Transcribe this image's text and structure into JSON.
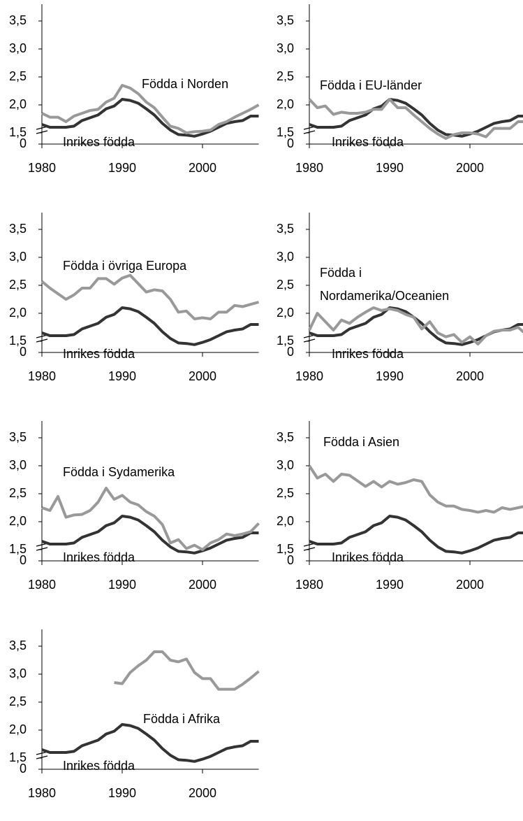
{
  "chart_data": [
    {
      "type": "line",
      "xlim": [
        1980,
        2007
      ],
      "xticks": [
        1980,
        1990,
        2000
      ],
      "ylim": [
        1.3,
        3.8
      ],
      "ybreak": true,
      "yticks": [
        0,
        {
          "value": 1.5,
          "label": "1,5"
        },
        {
          "value": 2.0,
          "label": "2,0"
        },
        {
          "value": 2.5,
          "label": "2,5"
        },
        {
          "value": 3.0,
          "label": "3,0"
        },
        {
          "value": 3.5,
          "label": "3,5"
        }
      ],
      "x": [
        1980,
        1981,
        1982,
        1983,
        1984,
        1985,
        1986,
        1987,
        1988,
        1989,
        1990,
        1991,
        1992,
        1993,
        1994,
        1995,
        1996,
        1997,
        1998,
        1999,
        2000,
        2001,
        2002,
        2003,
        2004,
        2005,
        2006,
        2007
      ],
      "series": [
        {
          "name": "Inrikes födda",
          "color": "#333333",
          "values": [
            1.65,
            1.6,
            1.6,
            1.6,
            1.62,
            1.72,
            1.77,
            1.82,
            1.93,
            1.98,
            2.1,
            2.08,
            2.03,
            1.93,
            1.82,
            1.67,
            1.55,
            1.47,
            1.46,
            1.44,
            1.48,
            1.53,
            1.6,
            1.67,
            1.7,
            1.72,
            1.8,
            1.8
          ]
        },
        {
          "name": "Födda i Norden",
          "color": "#999999",
          "values": [
            1.85,
            1.78,
            1.78,
            1.7,
            1.8,
            1.85,
            1.9,
            1.92,
            2.05,
            2.12,
            2.35,
            2.3,
            2.2,
            2.05,
            1.95,
            1.78,
            1.62,
            1.58,
            1.5,
            1.52,
            1.53,
            1.55,
            1.65,
            1.7,
            1.78,
            1.85,
            1.92,
            2.0
          ]
        }
      ]
    },
    {
      "type": "line",
      "xlim": [
        1980,
        2007
      ],
      "xticks": [
        1980,
        1990,
        2000
      ],
      "ylim": [
        1.3,
        3.8
      ],
      "ybreak": true,
      "yticks": [
        0,
        {
          "value": 1.5,
          "label": "1,5"
        },
        {
          "value": 2.0,
          "label": "2,0"
        },
        {
          "value": 2.5,
          "label": "2,5"
        },
        {
          "value": 3.0,
          "label": "3,0"
        },
        {
          "value": 3.5,
          "label": "3,5"
        }
      ],
      "x": [
        1980,
        1981,
        1982,
        1983,
        1984,
        1985,
        1986,
        1987,
        1988,
        1989,
        1990,
        1991,
        1992,
        1993,
        1994,
        1995,
        1996,
        1997,
        1998,
        1999,
        2000,
        2001,
        2002,
        2003,
        2004,
        2005,
        2006,
        2007
      ],
      "series": [
        {
          "name": "Inrikes födda",
          "color": "#333333",
          "values": [
            1.65,
            1.6,
            1.6,
            1.6,
            1.62,
            1.72,
            1.77,
            1.82,
            1.93,
            1.98,
            2.1,
            2.08,
            2.03,
            1.93,
            1.82,
            1.67,
            1.55,
            1.47,
            1.46,
            1.44,
            1.48,
            1.53,
            1.6,
            1.67,
            1.7,
            1.72,
            1.8,
            1.8
          ]
        },
        {
          "name": "Födda i EU-länder",
          "color": "#999999",
          "values": [
            2.1,
            1.95,
            1.98,
            1.83,
            1.87,
            1.85,
            1.85,
            1.87,
            1.92,
            1.92,
            2.1,
            1.95,
            1.95,
            1.82,
            1.7,
            1.58,
            1.48,
            1.4,
            1.47,
            1.5,
            1.5,
            1.48,
            1.43,
            1.58,
            1.58,
            1.58,
            1.7,
            1.7
          ]
        }
      ]
    },
    {
      "type": "line",
      "xlim": [
        1980,
        2007
      ],
      "xticks": [
        1980,
        1990,
        2000
      ],
      "ylim": [
        1.3,
        3.8
      ],
      "ybreak": true,
      "yticks": [
        0,
        {
          "value": 1.5,
          "label": "1,5"
        },
        {
          "value": 2.0,
          "label": "2,0"
        },
        {
          "value": 2.5,
          "label": "2,5"
        },
        {
          "value": 3.0,
          "label": "3,0"
        },
        {
          "value": 3.5,
          "label": "3,5"
        }
      ],
      "x": [
        1980,
        1981,
        1982,
        1983,
        1984,
        1985,
        1986,
        1987,
        1988,
        1989,
        1990,
        1991,
        1992,
        1993,
        1994,
        1995,
        1996,
        1997,
        1998,
        1999,
        2000,
        2001,
        2002,
        2003,
        2004,
        2005,
        2006,
        2007
      ],
      "series": [
        {
          "name": "Inrikes födda",
          "color": "#333333",
          "values": [
            1.65,
            1.6,
            1.6,
            1.6,
            1.62,
            1.72,
            1.77,
            1.82,
            1.93,
            1.98,
            2.1,
            2.08,
            2.03,
            1.93,
            1.82,
            1.67,
            1.55,
            1.47,
            1.46,
            1.44,
            1.48,
            1.53,
            1.6,
            1.67,
            1.7,
            1.72,
            1.8,
            1.8
          ]
        },
        {
          "name": "Födda i övriga Europa",
          "color": "#999999",
          "values": [
            2.57,
            2.45,
            2.35,
            2.25,
            2.33,
            2.45,
            2.45,
            2.62,
            2.62,
            2.52,
            2.63,
            2.68,
            2.53,
            2.38,
            2.42,
            2.4,
            2.25,
            2.02,
            2.04,
            1.9,
            1.92,
            1.9,
            2.02,
            2.02,
            2.14,
            2.12,
            2.16,
            2.2
          ]
        }
      ]
    },
    {
      "type": "line",
      "xlim": [
        1980,
        2007
      ],
      "xticks": [
        1980,
        1990,
        2000
      ],
      "ylim": [
        1.3,
        3.8
      ],
      "ybreak": true,
      "yticks": [
        0,
        {
          "value": 1.5,
          "label": "1,5"
        },
        {
          "value": 2.0,
          "label": "2,0"
        },
        {
          "value": 2.5,
          "label": "2,5"
        },
        {
          "value": 3.0,
          "label": "3,0"
        },
        {
          "value": 3.5,
          "label": "3,5"
        }
      ],
      "x": [
        1980,
        1981,
        1982,
        1983,
        1984,
        1985,
        1986,
        1987,
        1988,
        1989,
        1990,
        1991,
        1992,
        1993,
        1994,
        1995,
        1996,
        1997,
        1998,
        1999,
        2000,
        2001,
        2002,
        2003,
        2004,
        2005,
        2006,
        2007
      ],
      "series": [
        {
          "name": "Inrikes födda",
          "color": "#333333",
          "values": [
            1.65,
            1.6,
            1.6,
            1.6,
            1.62,
            1.72,
            1.77,
            1.82,
            1.93,
            1.98,
            2.1,
            2.08,
            2.03,
            1.93,
            1.82,
            1.67,
            1.55,
            1.47,
            1.46,
            1.44,
            1.48,
            1.53,
            1.6,
            1.67,
            1.7,
            1.72,
            1.8,
            1.8
          ]
        },
        {
          "name": "Födda i Nordamerika/Oceanien",
          "color": "#999999",
          "values": [
            1.7,
            2.0,
            1.85,
            1.7,
            1.88,
            1.82,
            1.93,
            2.02,
            2.1,
            2.05,
            2.08,
            2.05,
            1.98,
            1.93,
            1.72,
            1.85,
            1.65,
            1.58,
            1.62,
            1.48,
            1.58,
            1.45,
            1.6,
            1.68,
            1.7,
            1.7,
            1.75,
            1.62
          ]
        }
      ]
    },
    {
      "type": "line",
      "xlim": [
        1980,
        2007
      ],
      "xticks": [
        1980,
        1990,
        2000
      ],
      "ylim": [
        1.3,
        3.8
      ],
      "ybreak": true,
      "yticks": [
        0,
        {
          "value": 1.5,
          "label": "1,5"
        },
        {
          "value": 2.0,
          "label": "2,0"
        },
        {
          "value": 2.5,
          "label": "2,5"
        },
        {
          "value": 3.0,
          "label": "3,0"
        },
        {
          "value": 3.5,
          "label": "3,5"
        }
      ],
      "x": [
        1980,
        1981,
        1982,
        1983,
        1984,
        1985,
        1986,
        1987,
        1988,
        1989,
        1990,
        1991,
        1992,
        1993,
        1994,
        1995,
        1996,
        1997,
        1998,
        1999,
        2000,
        2001,
        2002,
        2003,
        2004,
        2005,
        2006,
        2007
      ],
      "series": [
        {
          "name": "Inrikes födda",
          "color": "#333333",
          "values": [
            1.65,
            1.6,
            1.6,
            1.6,
            1.62,
            1.72,
            1.77,
            1.82,
            1.93,
            1.98,
            2.1,
            2.08,
            2.03,
            1.93,
            1.82,
            1.67,
            1.55,
            1.47,
            1.46,
            1.44,
            1.48,
            1.53,
            1.6,
            1.67,
            1.7,
            1.72,
            1.8,
            1.8
          ]
        },
        {
          "name": "Födda i Sydamerika",
          "color": "#999999",
          "values": [
            2.25,
            2.2,
            2.45,
            2.08,
            2.12,
            2.13,
            2.2,
            2.35,
            2.6,
            2.4,
            2.47,
            2.35,
            2.3,
            2.18,
            2.1,
            1.95,
            1.62,
            1.68,
            1.52,
            1.58,
            1.5,
            1.62,
            1.68,
            1.78,
            1.75,
            1.78,
            1.82,
            1.97
          ]
        }
      ]
    },
    {
      "type": "line",
      "xlim": [
        1980,
        2007
      ],
      "xticks": [
        1980,
        1990,
        2000
      ],
      "ylim": [
        1.3,
        3.8
      ],
      "ybreak": true,
      "yticks": [
        0,
        {
          "value": 1.5,
          "label": "1,5"
        },
        {
          "value": 2.0,
          "label": "2,0"
        },
        {
          "value": 2.5,
          "label": "2,5"
        },
        {
          "value": 3.0,
          "label": "3,0"
        },
        {
          "value": 3.5,
          "label": "3,5"
        }
      ],
      "x": [
        1980,
        1981,
        1982,
        1983,
        1984,
        1985,
        1986,
        1987,
        1988,
        1989,
        1990,
        1991,
        1992,
        1993,
        1994,
        1995,
        1996,
        1997,
        1998,
        1999,
        2000,
        2001,
        2002,
        2003,
        2004,
        2005,
        2006,
        2007
      ],
      "series": [
        {
          "name": "Inrikes födda",
          "color": "#333333",
          "values": [
            1.65,
            1.6,
            1.6,
            1.6,
            1.62,
            1.72,
            1.77,
            1.82,
            1.93,
            1.98,
            2.1,
            2.08,
            2.03,
            1.93,
            1.82,
            1.67,
            1.55,
            1.47,
            1.46,
            1.44,
            1.48,
            1.53,
            1.6,
            1.67,
            1.7,
            1.72,
            1.8,
            1.8
          ]
        },
        {
          "name": "Födda i Asien",
          "color": "#999999",
          "values": [
            3.0,
            2.78,
            2.85,
            2.72,
            2.85,
            2.83,
            2.73,
            2.63,
            2.72,
            2.62,
            2.72,
            2.67,
            2.7,
            2.75,
            2.72,
            2.48,
            2.35,
            2.28,
            2.28,
            2.22,
            2.2,
            2.17,
            2.2,
            2.17,
            2.25,
            2.22,
            2.25,
            2.28
          ]
        }
      ]
    },
    {
      "type": "line",
      "xlim": [
        1980,
        2007
      ],
      "xticks": [
        1980,
        1990,
        2000
      ],
      "ylim": [
        1.3,
        3.8
      ],
      "ybreak": true,
      "yticks": [
        0,
        {
          "value": 1.5,
          "label": "1,5"
        },
        {
          "value": 2.0,
          "label": "2,0"
        },
        {
          "value": 2.5,
          "label": "2,5"
        },
        {
          "value": 3.0,
          "label": "3,0"
        },
        {
          "value": 3.5,
          "label": "3,5"
        }
      ],
      "x": [
        1980,
        1981,
        1982,
        1983,
        1984,
        1985,
        1986,
        1987,
        1988,
        1989,
        1990,
        1991,
        1992,
        1993,
        1994,
        1995,
        1996,
        1997,
        1998,
        1999,
        2000,
        2001,
        2002,
        2003,
        2004,
        2005,
        2006,
        2007
      ],
      "series": [
        {
          "name": "Inrikes födda",
          "color": "#333333",
          "values": [
            1.65,
            1.6,
            1.6,
            1.6,
            1.62,
            1.72,
            1.77,
            1.82,
            1.93,
            1.98,
            2.1,
            2.08,
            2.03,
            1.93,
            1.82,
            1.67,
            1.55,
            1.47,
            1.46,
            1.44,
            1.48,
            1.53,
            1.6,
            1.67,
            1.7,
            1.72,
            1.8,
            1.8
          ]
        },
        {
          "name": "Födda i Afrika",
          "color": "#999999",
          "values": [
            null,
            null,
            null,
            null,
            null,
            null,
            null,
            null,
            null,
            2.85,
            2.83,
            3.03,
            3.15,
            3.25,
            3.4,
            3.4,
            3.25,
            3.22,
            3.27,
            3.03,
            2.92,
            2.92,
            2.73,
            2.73,
            2.73,
            2.82,
            2.93,
            3.05
          ]
        }
      ]
    }
  ]
}
